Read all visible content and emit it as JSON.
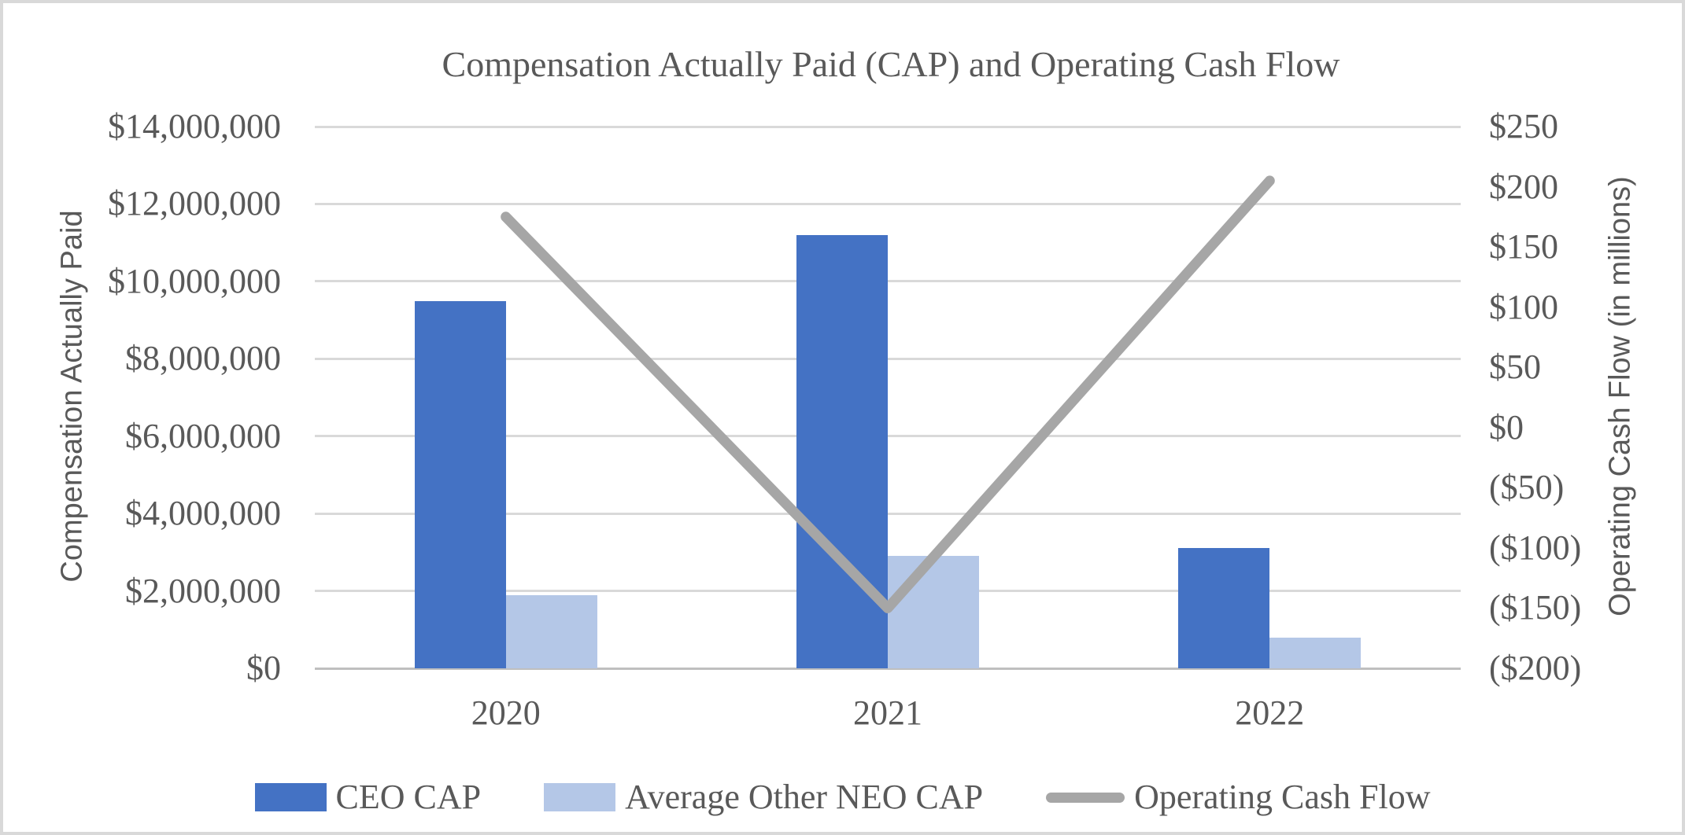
{
  "chart_data": {
    "type": "combo-bar-line",
    "title": "Compensation Actually Paid (CAP) and Operating Cash Flow",
    "categories": [
      "2020",
      "2021",
      "2022"
    ],
    "series": [
      {
        "name": "CEO CAP",
        "chart": "bar",
        "axis": "left",
        "color": "#4472C4",
        "values": [
          9500000,
          11200000,
          3100000
        ]
      },
      {
        "name": "Average Other NEO CAP",
        "chart": "bar",
        "axis": "left",
        "color": "#B4C7E7",
        "values": [
          1900000,
          2900000,
          800000
        ]
      },
      {
        "name": "Operating Cash Flow",
        "chart": "line",
        "axis": "right",
        "color": "#A6A6A6",
        "values": [
          175,
          -150,
          205
        ]
      }
    ],
    "left_axis": {
      "title": "Compensation Actually Paid",
      "min": 0,
      "max": 14000000,
      "tick_step": 2000000,
      "ticks": [
        {
          "label": "$14,000,000",
          "value": 14000000
        },
        {
          "label": "$12,000,000",
          "value": 12000000
        },
        {
          "label": "$10,000,000",
          "value": 10000000
        },
        {
          "label": "$8,000,000",
          "value": 8000000
        },
        {
          "label": "$6,000,000",
          "value": 6000000
        },
        {
          "label": "$4,000,000",
          "value": 4000000
        },
        {
          "label": "$2,000,000",
          "value": 2000000
        },
        {
          "label": "$0",
          "value": 0
        }
      ]
    },
    "right_axis": {
      "title": "Operating Cash Flow (in millions)",
      "min": -200,
      "max": 250,
      "tick_step": 50,
      "ticks": [
        {
          "label": "$250",
          "value": 250
        },
        {
          "label": "$200",
          "value": 200
        },
        {
          "label": "$150",
          "value": 150
        },
        {
          "label": "$100",
          "value": 100
        },
        {
          "label": "$50",
          "value": 50
        },
        {
          "label": "$0",
          "value": 0
        },
        {
          "label": "($50)",
          "value": -50
        },
        {
          "label": "($100)",
          "value": -100
        },
        {
          "label": "($150)",
          "value": -150
        },
        {
          "label": "($200)",
          "value": -200
        }
      ]
    },
    "legend_position": "bottom",
    "gridlines": "horizontal",
    "colors": {
      "text": "#595959",
      "gridline": "#D9D9D9",
      "axis_line": "#BFBFBF",
      "frame_border": "#D9D9D9",
      "background": "#FFFFFF"
    }
  }
}
